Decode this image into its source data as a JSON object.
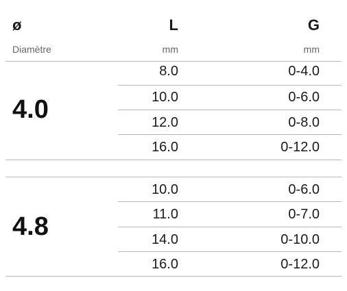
{
  "header": {
    "diameter_symbol": "ø",
    "length_symbol": "L",
    "grip_symbol": "G",
    "diameter_label": "Diamètre",
    "length_unit": "mm",
    "grip_unit": "mm"
  },
  "groups": [
    {
      "diameter": "4.0",
      "rows": [
        {
          "L": "8.0",
          "G": "0-4.0"
        },
        {
          "L": "10.0",
          "G": "0-6.0"
        },
        {
          "L": "12.0",
          "G": "0-8.0"
        },
        {
          "L": "16.0",
          "G": "0-12.0"
        }
      ]
    },
    {
      "diameter": "4.8",
      "rows": [
        {
          "L": "10.0",
          "G": "0-6.0"
        },
        {
          "L": "11.0",
          "G": "0-7.0"
        },
        {
          "L": "14.0",
          "G": "0-10.0"
        },
        {
          "L": "16.0",
          "G": "0-12.0"
        }
      ]
    }
  ]
}
